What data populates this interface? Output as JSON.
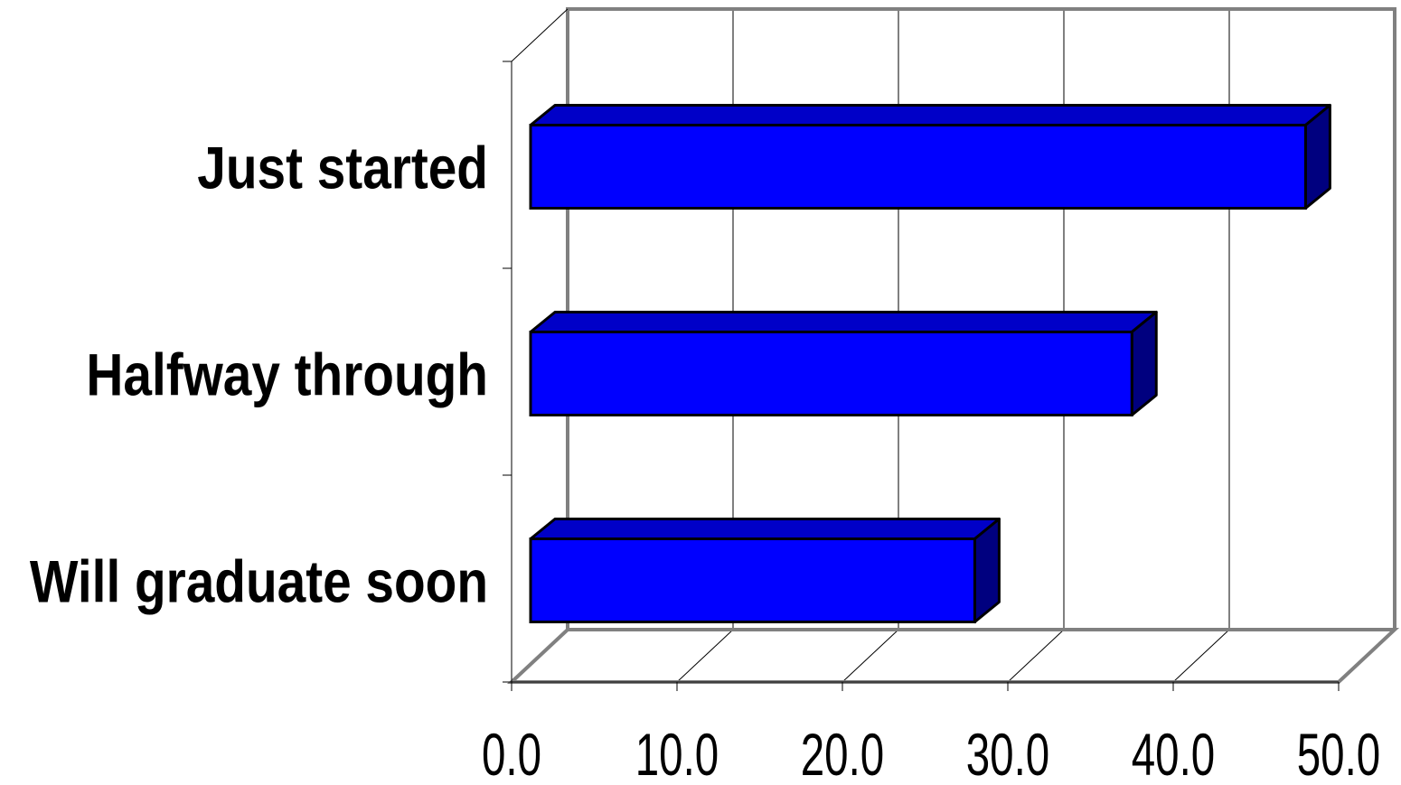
{
  "chart_data": {
    "type": "bar",
    "orientation": "horizontal",
    "three_d": true,
    "categories": [
      "Just started",
      "Halfway through",
      "Will graduate soon"
    ],
    "values": [
      48.0,
      37.5,
      28.0
    ],
    "x_ticks": [
      "0.0",
      "10.0",
      "20.0",
      "30.0",
      "40.0",
      "50.0"
    ],
    "xlim": [
      0,
      50
    ],
    "title": "",
    "xlabel": "",
    "ylabel": "",
    "grid": true,
    "legend": "none",
    "colors": {
      "bar_front": "#0000ff",
      "bar_top": "#0000c8",
      "bar_side": "#00007f",
      "bar_outline": "#000000",
      "frame": "#808080",
      "gridline": "#000000"
    }
  }
}
